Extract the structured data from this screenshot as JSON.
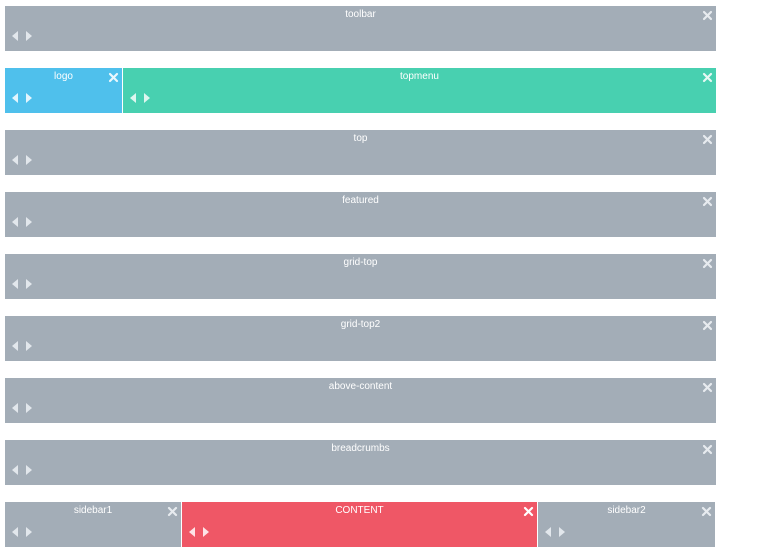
{
  "rows": [
    {
      "blocks": [
        {
          "title": "toolbar"
        }
      ]
    },
    {
      "blocks": [
        {
          "title": "logo"
        },
        {
          "title": "topmenu"
        }
      ]
    },
    {
      "blocks": [
        {
          "title": "top"
        }
      ]
    },
    {
      "blocks": [
        {
          "title": "featured"
        }
      ]
    },
    {
      "blocks": [
        {
          "title": "grid-top"
        }
      ]
    },
    {
      "blocks": [
        {
          "title": "grid-top2"
        }
      ]
    },
    {
      "blocks": [
        {
          "title": "above-content"
        }
      ]
    },
    {
      "blocks": [
        {
          "title": "breadcrumbs"
        }
      ]
    },
    {
      "blocks": [
        {
          "title": "sidebar1"
        },
        {
          "title": "CONTENT"
        },
        {
          "title": "sidebar2"
        }
      ]
    }
  ],
  "colors": {
    "gray": "#a3adb7",
    "blue": "#4fc0ec",
    "teal": "#48d0b0",
    "red": "#ef5766"
  },
  "icons": {
    "close": "close-icon",
    "left": "arrow-left-icon",
    "right": "arrow-right-icon"
  }
}
